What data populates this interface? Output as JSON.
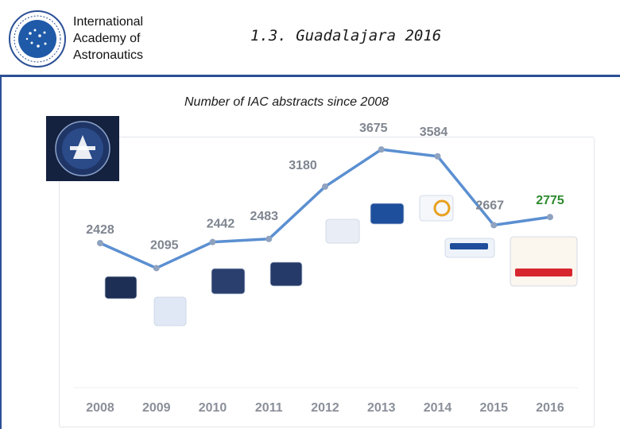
{
  "header": {
    "org_line1": "International",
    "org_line2": "Academy of",
    "org_line3": "Astronautics",
    "slide_title": "1.3. Guadalajara 2016"
  },
  "colors": {
    "line": "#5b8fd1",
    "marker": "#8fa2bf",
    "label": "#7f8590",
    "highlight": "#2e8b2e",
    "rule": "#2a4f95"
  },
  "chart_data": {
    "type": "line",
    "title": "Number of IAC abstracts since 2008",
    "x": [
      "2008",
      "2009",
      "2010",
      "2011",
      "2012",
      "2013",
      "2014",
      "2015",
      "2016"
    ],
    "values": [
      2428,
      2095,
      2442,
      2483,
      3180,
      3675,
      3584,
      2667,
      2775
    ],
    "data_labels": [
      "2428",
      "2095",
      "2442",
      "2483",
      "3180",
      "3675",
      "3584",
      "2667",
      "2775"
    ],
    "highlight_index": 8,
    "xlabel": "",
    "ylabel": "",
    "grid": false,
    "legend": "none"
  }
}
